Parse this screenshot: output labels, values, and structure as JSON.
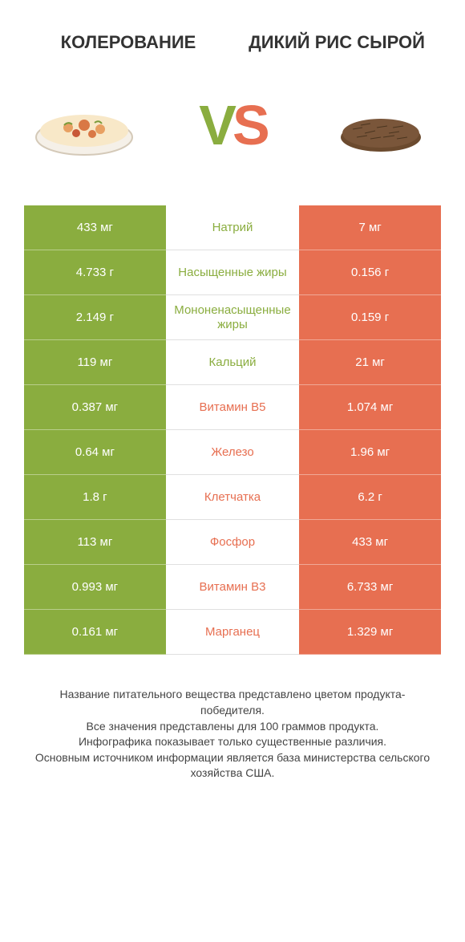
{
  "header": {
    "left": "КОЛЕРОВАНИЕ",
    "right": "ДИКИЙ РИС СЫРОЙ"
  },
  "colors": {
    "green": "#8aad3f",
    "orange": "#e76f51",
    "text": "#333333",
    "footer": "#444444",
    "white": "#ffffff"
  },
  "vs": {
    "v": "V",
    "s": "S"
  },
  "rows": [
    {
      "left": "433 мг",
      "label": "Натрий",
      "right": "7 мг",
      "winner": "left"
    },
    {
      "left": "4.733 г",
      "label": "Насыщенные жиры",
      "right": "0.156 г",
      "winner": "left"
    },
    {
      "left": "2.149 г",
      "label": "Мононенасыщенные жиры",
      "right": "0.159 г",
      "winner": "left"
    },
    {
      "left": "119 мг",
      "label": "Кальций",
      "right": "21 мг",
      "winner": "left"
    },
    {
      "left": "0.387 мг",
      "label": "Витамин B5",
      "right": "1.074 мг",
      "winner": "right"
    },
    {
      "left": "0.64 мг",
      "label": "Железо",
      "right": "1.96 мг",
      "winner": "right"
    },
    {
      "left": "1.8 г",
      "label": "Клетчатка",
      "right": "6.2 г",
      "winner": "right"
    },
    {
      "left": "113 мг",
      "label": "Фосфор",
      "right": "433 мг",
      "winner": "right"
    },
    {
      "left": "0.993 мг",
      "label": "Витамин B3",
      "right": "6.733 мг",
      "winner": "right"
    },
    {
      "left": "0.161 мг",
      "label": "Марганец",
      "right": "1.329 мг",
      "winner": "right"
    }
  ],
  "footer": {
    "line1": "Название питательного вещества представлено цветом продукта-победителя.",
    "line2": "Все значения представлены для 100 граммов продукта.",
    "line3": "Инфографика показывает только существенные различия.",
    "line4": "Основным источником информации является база министерства сельского хозяйства США."
  },
  "typography": {
    "title_fontsize": 22,
    "vs_fontsize": 70,
    "cell_fontsize": 15,
    "footer_fontsize": 14
  }
}
